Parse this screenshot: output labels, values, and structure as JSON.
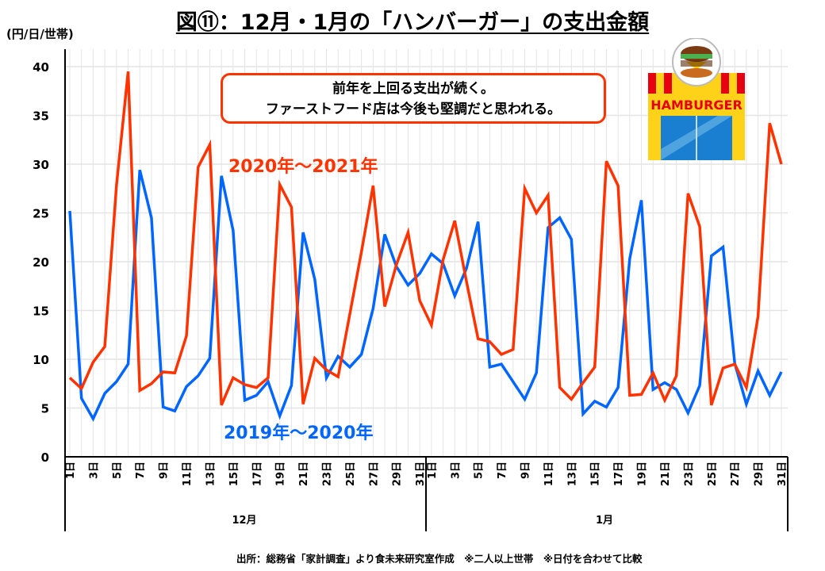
{
  "chart_data": {
    "type": "line",
    "title": "図⑪：12月・1月の「ハンバーガー」の支出金額",
    "ylabel": "(円/日/世帯)",
    "ylim": [
      0,
      40
    ],
    "yticks": [
      0,
      5,
      10,
      15,
      20,
      25,
      30,
      35,
      40
    ],
    "grid": true,
    "months": [
      "12月",
      "1月"
    ],
    "day_suffix": "日",
    "days_per_month": 31,
    "series": [
      {
        "name": "2019年～2020年",
        "color": "#0066ff",
        "values": [
          25.2,
          6.0,
          3.9,
          6.5,
          7.7,
          9.5,
          29.4,
          24.5,
          5.1,
          4.7,
          7.2,
          8.3,
          10.1,
          28.8,
          23.2,
          5.8,
          6.3,
          7.7,
          4.2,
          7.3,
          23.0,
          18.2,
          8.1,
          10.3,
          9.2,
          10.5,
          15.2,
          22.8,
          19.5,
          17.6,
          18.8,
          20.8,
          19.8,
          16.5,
          19.3,
          24.1,
          9.2,
          9.5,
          7.7,
          5.9,
          8.6,
          23.5,
          24.5,
          22.3,
          4.4,
          5.7,
          5.1,
          7.1,
          20.3,
          26.3,
          6.9,
          7.6,
          6.9,
          4.5,
          7.3,
          20.6,
          21.5,
          9.6,
          5.4,
          8.8,
          6.3,
          8.7
        ]
      },
      {
        "name": "2020年～2021年",
        "color": "#ff3300",
        "values": [
          8.1,
          7.0,
          9.7,
          11.3,
          27.8,
          39.5,
          6.8,
          7.5,
          8.7,
          8.6,
          12.4,
          29.7,
          32.0,
          5.3,
          8.1,
          7.4,
          7.1,
          8.1,
          27.9,
          25.6,
          5.4,
          10.1,
          8.9,
          8.2,
          14.6,
          21.0,
          27.8,
          15.4,
          19.7,
          23.0,
          16.0,
          13.5,
          20.2,
          24.2,
          18.0,
          12.1,
          11.8,
          10.5,
          11.0,
          27.5,
          25.0,
          26.8,
          7.1,
          5.9,
          7.6,
          9.2,
          30.3,
          27.8,
          6.3,
          6.4,
          8.6,
          5.8,
          8.3,
          27.0,
          23.6,
          5.3,
          9.1,
          9.5,
          7.1,
          14.4,
          34.2,
          30.0
        ]
      }
    ],
    "annotation": [
      "前年を上回る支出が続く。",
      "ファーストフード店は今後も堅調だと思われる。"
    ],
    "source": "出所：総務省「家計調査」より食未来研究室作成　※二人以上世帯　※日付を合わせて比較",
    "image_text": "HAMBURGER"
  }
}
